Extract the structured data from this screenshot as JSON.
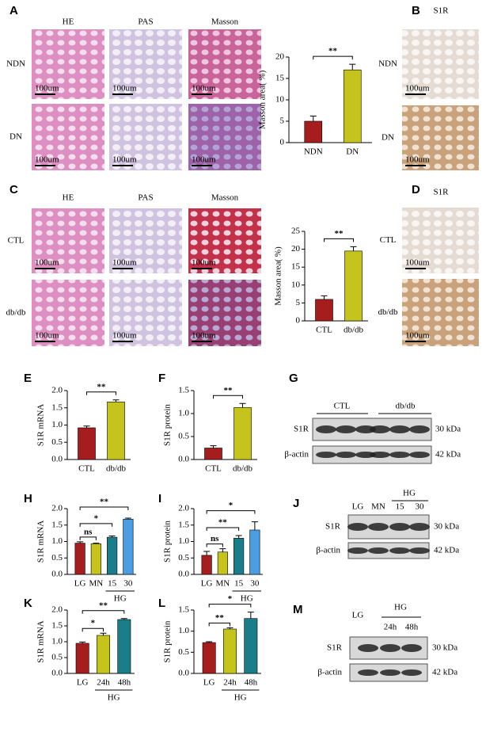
{
  "figure": {
    "panels": [
      "A",
      "B",
      "C",
      "D",
      "E",
      "F",
      "G",
      "H",
      "I",
      "J",
      "K",
      "L",
      "M"
    ],
    "columns": [
      "HE",
      "PAS",
      "Masson"
    ],
    "a_rows": [
      "NDN",
      "DN"
    ],
    "c_rows": [
      "CTL",
      "db/db"
    ],
    "ihc_title": "S1R",
    "scale_bar": "100um",
    "blots": [
      {
        "groups": [
          "CTL",
          "db/db"
        ],
        "rows": [
          "S1R",
          "β-actin"
        ],
        "sizes": [
          "30 kDa",
          "42 kDa"
        ]
      },
      {
        "lanes": [
          "LG",
          "MN",
          "15",
          "30"
        ],
        "group": "HG",
        "rows": [
          "S1R",
          "β-actin"
        ],
        "sizes": [
          "30 kDa",
          "42 kDa"
        ]
      },
      {
        "lanes": [
          "LG",
          "24h",
          "48h"
        ],
        "group": "HG",
        "rows": [
          "S1R",
          "β-actin"
        ],
        "sizes": [
          "30 kDa",
          "42 kDa"
        ]
      }
    ]
  },
  "chart_data": [
    {
      "type": "bar",
      "ylabel": "Masson area( %)",
      "categories": [
        "NDN",
        "DN"
      ],
      "values": [
        5,
        17
      ],
      "errors": [
        1.2,
        1.3
      ],
      "colors": [
        "#a51d1d",
        "#c4c41c"
      ],
      "ylim": [
        0,
        20
      ],
      "yticks": [
        0,
        5,
        10,
        15,
        20
      ],
      "significance": [
        "**"
      ]
    },
    {
      "type": "bar",
      "ylabel": "Masson area( %)",
      "categories": [
        "CTL",
        "db/db"
      ],
      "values": [
        6,
        19.5
      ],
      "errors": [
        1,
        1.2
      ],
      "colors": [
        "#a51d1d",
        "#c4c41c"
      ],
      "ylim": [
        0,
        25
      ],
      "yticks": [
        0,
        5,
        10,
        15,
        20,
        25
      ],
      "significance": [
        "**"
      ]
    },
    {
      "type": "bar",
      "ylabel": "S1R mRNA",
      "categories": [
        "CTL",
        "db/db"
      ],
      "values": [
        0.92,
        1.67
      ],
      "errors": [
        0.05,
        0.06
      ],
      "colors": [
        "#a51d1d",
        "#c4c41c"
      ],
      "ylim": [
        0,
        2
      ],
      "yticks": [
        {
          "value": 0,
          "label": "0.0"
        },
        0.5,
        {
          "value": 1,
          "label": "1.0"
        },
        1.5,
        {
          "value": 2,
          "label": "2.0"
        }
      ],
      "significance": [
        "**"
      ]
    },
    {
      "type": "bar",
      "ylabel": "S1R protein",
      "categories": [
        "CTL",
        "db/db"
      ],
      "values": [
        0.25,
        1.13
      ],
      "errors": [
        0.05,
        0.09
      ],
      "colors": [
        "#a51d1d",
        "#c4c41c"
      ],
      "ylim": [
        0,
        1.5
      ],
      "yticks": [
        {
          "value": 0,
          "label": "0.0"
        },
        0.5,
        {
          "value": 1,
          "label": "1.0"
        },
        1.5
      ],
      "significance": [
        "**"
      ]
    },
    {
      "type": "bar",
      "ylabel": "S1R mRNA",
      "categories": [
        "LG",
        "MN",
        "15",
        "30"
      ],
      "values": [
        0.95,
        0.93,
        1.13,
        1.68
      ],
      "errors": [
        0.04,
        0.02,
        0.04,
        0.03
      ],
      "colors": [
        "#a51d1d",
        "#c4c41c",
        "#1a7d8a",
        "#4a9de0"
      ],
      "ylim": [
        0,
        2
      ],
      "yticks": [
        {
          "value": 0,
          "label": "0.0"
        },
        0.5,
        {
          "value": 1,
          "label": "1.0"
        },
        1.5,
        {
          "value": 2,
          "label": "2.0"
        }
      ],
      "significance": [
        "ns",
        "*",
        "**"
      ],
      "group_label": "HG"
    },
    {
      "type": "bar",
      "ylabel": "S1R protein",
      "categories": [
        "LG",
        "MN",
        "15",
        "30"
      ],
      "values": [
        0.58,
        0.68,
        1.1,
        1.35
      ],
      "errors": [
        0.12,
        0.1,
        0.08,
        0.25
      ],
      "colors": [
        "#a51d1d",
        "#c4c41c",
        "#1a7d8a",
        "#4a9de0"
      ],
      "ylim": [
        0,
        2
      ],
      "yticks": [
        {
          "value": 0,
          "label": "0.0"
        },
        0.5,
        {
          "value": 1,
          "label": "1.0"
        },
        1.5,
        {
          "value": 2,
          "label": "2.0"
        }
      ],
      "significance": [
        "ns",
        "**",
        "*"
      ],
      "group_label": "HG"
    },
    {
      "type": "bar",
      "ylabel": "S1R mRNA",
      "categories": [
        "LG",
        "24h",
        "48h"
      ],
      "values": [
        0.95,
        1.2,
        1.7
      ],
      "errors": [
        0.04,
        0.07,
        0.03
      ],
      "colors": [
        "#a51d1d",
        "#c4c41c",
        "#1a7d8a"
      ],
      "ylim": [
        0,
        2
      ],
      "yticks": [
        {
          "value": 0,
          "label": "0.0"
        },
        0.5,
        {
          "value": 1,
          "label": "1.0"
        },
        1.5,
        {
          "value": 2,
          "label": "2.0"
        }
      ],
      "significance": [
        "*",
        "**"
      ],
      "group_label": "HG"
    },
    {
      "type": "bar",
      "ylabel": "S1R protein",
      "categories": [
        "LG",
        "24h",
        "48h"
      ],
      "values": [
        0.73,
        1.05,
        1.3
      ],
      "errors": [
        0.02,
        0.03,
        0.15
      ],
      "colors": [
        "#a51d1d",
        "#c4c41c",
        "#1a7d8a"
      ],
      "ylim": [
        0,
        1.5
      ],
      "yticks": [
        {
          "value": 0,
          "label": "0.0"
        },
        0.5,
        {
          "value": 1,
          "label": "1.0"
        },
        1.5
      ],
      "significance": [
        "**",
        "*"
      ],
      "group_label": "HG"
    }
  ]
}
